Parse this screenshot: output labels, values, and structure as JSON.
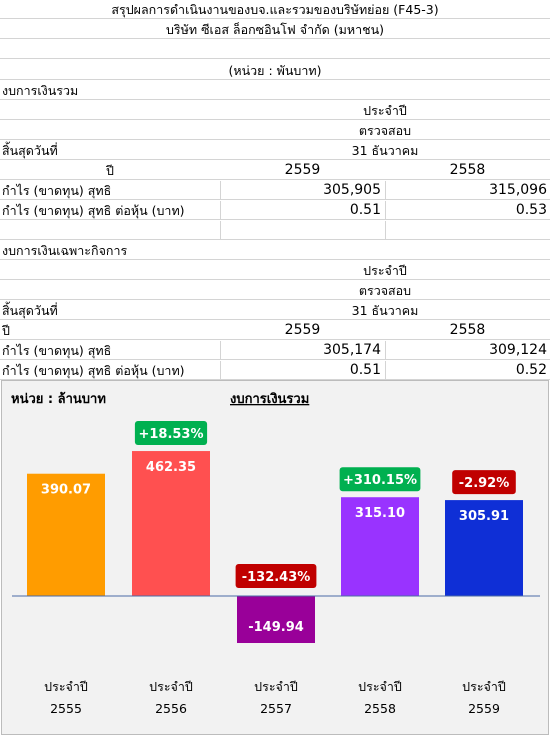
{
  "header": {
    "title": "สรุปผลการดำเนินงานของบจ.และรวมของบริษัทย่อย (F45-3)",
    "company": "บริษัท ซีเอส ล็อกซอินโฟ จำกัด (มหาชน)",
    "unit": "(หน่วย : พันบาท)"
  },
  "consolidated": {
    "section_label": "งบการเงินรวม",
    "period": "ประจำปี",
    "audit": "ตรวจสอบ",
    "ending_label": "สิ้นสุดวันที่",
    "ending_date": "31 ธันวาคม",
    "year_label": "ปี",
    "years": [
      "2559",
      "2558"
    ],
    "rows": [
      {
        "label": "กำไร (ขาดทุน) สุทธิ",
        "values": [
          "305,905",
          "315,096"
        ]
      },
      {
        "label": "กำไร (ขาดทุน) สุทธิ ต่อหุ้น (บาท)",
        "values": [
          "0.51",
          "0.53"
        ]
      }
    ]
  },
  "separate": {
    "section_label": "งบการเงินเฉพาะกิจการ",
    "period": "ประจำปี",
    "audit": "ตรวจสอบ",
    "ending_label": "สิ้นสุดวันที่",
    "ending_date": "31 ธันวาคม",
    "year_label": "ปี",
    "years": [
      "2559",
      "2558"
    ],
    "rows": [
      {
        "label": "กำไร (ขาดทุน) สุทธิ",
        "values": [
          "305,174",
          "309,124"
        ]
      },
      {
        "label": "กำไร (ขาดทุน) สุทธิ ต่อหุ้น (บาท)",
        "values": [
          "0.51",
          "0.52"
        ]
      }
    ]
  },
  "chart_data": {
    "type": "bar",
    "title": "งบการเงินรวม",
    "unit_label": "หน่วย : ล้านบาท",
    "categories": [
      {
        "line1": "ประจำปี",
        "line2": "2555"
      },
      {
        "line1": "ประจำปี",
        "line2": "2556"
      },
      {
        "line1": "ประจำปี",
        "line2": "2557"
      },
      {
        "line1": "ประจำปี",
        "line2": "2558"
      },
      {
        "line1": "ประจำปี",
        "line2": "2559"
      }
    ],
    "values": [
      390.07,
      462.35,
      -149.94,
      315.1,
      305.91
    ],
    "value_labels": [
      "390.07",
      "462.35",
      "-149.94",
      "315.10",
      "305.91"
    ],
    "bar_colors": [
      "#ff9c00",
      "#ff5050",
      "#990099",
      "#9933ff",
      "#0f2fd6"
    ],
    "changes": [
      null,
      {
        "text": "+18.53%",
        "color": "#00b050"
      },
      {
        "text": "-132.43%",
        "color": "#c00000"
      },
      {
        "text": "+310.15%",
        "color": "#00b050"
      },
      {
        "text": "-2.92%",
        "color": "#c00000"
      }
    ],
    "ylim": [
      -170,
      540
    ],
    "grid": false,
    "legend": "none"
  }
}
